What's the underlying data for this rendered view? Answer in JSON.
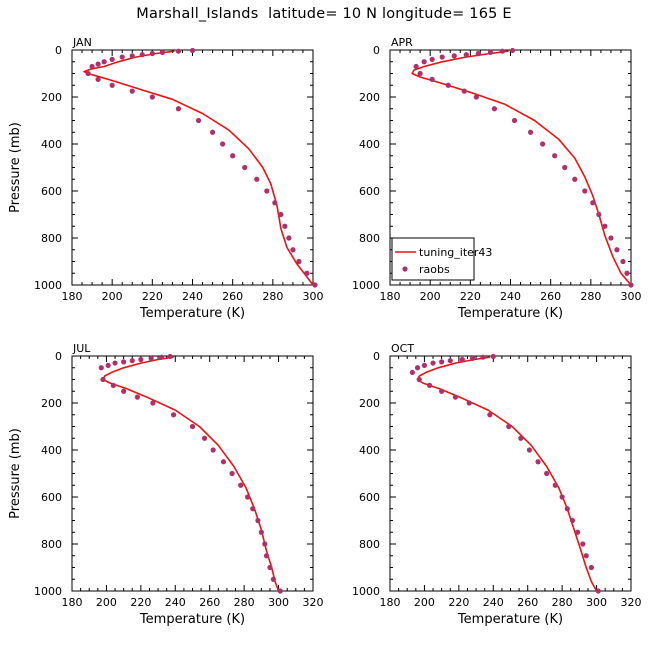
{
  "title": "Marshall_Islands  latitude= 10 N longitude= 165 E",
  "colors": {
    "model": "#ee1111",
    "obs": "#b0306a",
    "axis": "#000000"
  },
  "legend": {
    "line_label": "tuning_iter43",
    "marker_label": "raobs",
    "panel": "APR"
  },
  "chart_data": [
    {
      "type": "line",
      "panel": "JAN",
      "xlabel": "Temperature (K)",
      "ylabel": "Pressure (mb)",
      "xlim": [
        180,
        300
      ],
      "ylim": [
        1000,
        0
      ],
      "xticks": [
        180,
        200,
        220,
        240,
        260,
        280,
        300
      ],
      "yticks": [
        0,
        200,
        400,
        600,
        800,
        1000
      ],
      "series": [
        {
          "name": "tuning_iter43",
          "kind": "line",
          "x": [
            231,
            222,
            212,
            203,
            196,
            190,
            186,
            190,
            200,
            215,
            230,
            245,
            258,
            268,
            275,
            279,
            282,
            284,
            287,
            292,
            296,
            300
          ],
          "y": [
            5,
            15,
            30,
            50,
            70,
            80,
            92,
            105,
            130,
            170,
            210,
            270,
            340,
            420,
            500,
            570,
            660,
            760,
            840,
            910,
            955,
            1000
          ]
        },
        {
          "name": "raobs",
          "kind": "scatter",
          "x": [
            240,
            233,
            225,
            220,
            215,
            210,
            205,
            200,
            196,
            193,
            190,
            188,
            193,
            200,
            210,
            220,
            233,
            243,
            250,
            255,
            260,
            266,
            272,
            277,
            281,
            284,
            286,
            288,
            290,
            293,
            297,
            301
          ],
          "y": [
            2,
            5,
            10,
            15,
            20,
            25,
            30,
            40,
            50,
            60,
            70,
            100,
            125,
            150,
            175,
            200,
            250,
            300,
            350,
            400,
            450,
            500,
            550,
            600,
            650,
            700,
            750,
            800,
            850,
            900,
            950,
            1000
          ]
        }
      ]
    },
    {
      "type": "line",
      "panel": "APR",
      "xlabel": "Temperature (K)",
      "ylabel": "",
      "xlim": [
        180,
        300
      ],
      "ylim": [
        1000,
        0
      ],
      "xticks": [
        180,
        200,
        220,
        240,
        260,
        280,
        300
      ],
      "yticks": [
        0,
        200,
        400,
        600,
        800,
        1000
      ],
      "series": [
        {
          "name": "tuning_iter43",
          "kind": "line",
          "x": [
            239,
            230,
            218,
            206,
            197,
            192,
            191,
            195,
            205,
            220,
            237,
            252,
            264,
            272,
            277,
            281,
            284,
            287,
            291,
            295,
            300
          ],
          "y": [
            5,
            15,
            30,
            50,
            70,
            85,
            100,
            115,
            140,
            180,
            230,
            300,
            380,
            460,
            540,
            620,
            700,
            790,
            880,
            950,
            1000
          ]
        },
        {
          "name": "raobs",
          "kind": "scatter",
          "x": [
            241,
            236,
            230,
            224,
            218,
            212,
            206,
            201,
            197,
            193,
            195,
            201,
            209,
            217,
            223,
            232,
            242,
            250,
            256,
            262,
            267,
            272,
            277,
            281,
            284,
            287,
            290,
            293,
            296,
            298,
            300
          ],
          "y": [
            2,
            5,
            10,
            15,
            20,
            25,
            30,
            40,
            50,
            70,
            100,
            125,
            150,
            175,
            200,
            250,
            300,
            350,
            400,
            450,
            500,
            550,
            600,
            650,
            700,
            750,
            800,
            850,
            900,
            950,
            1000
          ]
        }
      ]
    },
    {
      "type": "line",
      "panel": "JUL",
      "xlabel": "Temperature (K)",
      "ylabel": "Pressure (mb)",
      "xlim": [
        180,
        320
      ],
      "ylim": [
        1000,
        0
      ],
      "xticks": [
        180,
        200,
        220,
        240,
        260,
        280,
        300,
        320
      ],
      "yticks": [
        0,
        200,
        400,
        600,
        800,
        1000
      ],
      "series": [
        {
          "name": "tuning_iter43",
          "kind": "line",
          "x": [
            239,
            230,
            220,
            210,
            203,
            199,
            198,
            202,
            212,
            225,
            240,
            254,
            265,
            274,
            281,
            286,
            290,
            293,
            296,
            298,
            300
          ],
          "y": [
            5,
            15,
            30,
            50,
            70,
            85,
            100,
            115,
            140,
            180,
            230,
            300,
            380,
            470,
            560,
            650,
            740,
            830,
            900,
            960,
            1000
          ]
        },
        {
          "name": "raobs",
          "kind": "scatter",
          "x": [
            237,
            232,
            226,
            220,
            215,
            210,
            205,
            201,
            197,
            198,
            204,
            210,
            218,
            227,
            239,
            250,
            257,
            262,
            268,
            273,
            278,
            282,
            285,
            288,
            290,
            292,
            293,
            295,
            297,
            301
          ],
          "y": [
            2,
            5,
            10,
            15,
            20,
            25,
            30,
            40,
            50,
            100,
            125,
            150,
            175,
            200,
            250,
            300,
            350,
            400,
            450,
            500,
            550,
            600,
            650,
            700,
            750,
            800,
            850,
            900,
            950,
            1000
          ]
        }
      ]
    },
    {
      "type": "line",
      "panel": "OCT",
      "xlabel": "Temperature (K)",
      "ylabel": "",
      "xlim": [
        180,
        320
      ],
      "ylim": [
        1000,
        0
      ],
      "xticks": [
        180,
        200,
        220,
        240,
        260,
        280,
        300,
        320
      ],
      "yticks": [
        0,
        200,
        400,
        600,
        800,
        1000
      ],
      "series": [
        {
          "name": "tuning_iter43",
          "kind": "line",
          "x": [
            238,
            229,
            218,
            208,
            201,
            197,
            196,
            199,
            209,
            222,
            237,
            251,
            262,
            271,
            278,
            283,
            287,
            291,
            294,
            297,
            300
          ],
          "y": [
            5,
            15,
            30,
            50,
            70,
            85,
            100,
            115,
            140,
            180,
            230,
            300,
            380,
            470,
            560,
            650,
            740,
            830,
            900,
            960,
            1000
          ]
        },
        {
          "name": "raobs",
          "kind": "scatter",
          "x": [
            240,
            234,
            228,
            222,
            215,
            210,
            205,
            200,
            196,
            193,
            197,
            203,
            210,
            218,
            226,
            238,
            249,
            256,
            261,
            266,
            271,
            276,
            280,
            283,
            286,
            289,
            292,
            294,
            297,
            301
          ],
          "y": [
            2,
            5,
            10,
            15,
            20,
            25,
            30,
            40,
            50,
            70,
            100,
            125,
            150,
            175,
            200,
            250,
            300,
            350,
            400,
            450,
            500,
            550,
            600,
            650,
            700,
            750,
            800,
            850,
            900,
            1000
          ]
        }
      ]
    }
  ]
}
